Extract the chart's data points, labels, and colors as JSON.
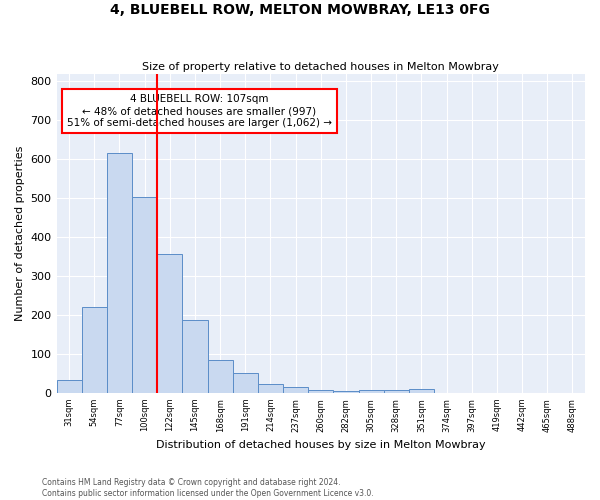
{
  "title": "4, BLUEBELL ROW, MELTON MOWBRAY, LE13 0FG",
  "subtitle": "Size of property relative to detached houses in Melton Mowbray",
  "xlabel": "Distribution of detached houses by size in Melton Mowbray",
  "ylabel": "Number of detached properties",
  "bin_labels": [
    "31sqm",
    "54sqm",
    "77sqm",
    "100sqm",
    "122sqm",
    "145sqm",
    "168sqm",
    "191sqm",
    "214sqm",
    "237sqm",
    "260sqm",
    "282sqm",
    "305sqm",
    "328sqm",
    "351sqm",
    "374sqm",
    "397sqm",
    "419sqm",
    "442sqm",
    "465sqm",
    "488sqm"
  ],
  "bar_heights": [
    32,
    220,
    615,
    503,
    357,
    187,
    85,
    52,
    22,
    14,
    8,
    5,
    8,
    8,
    10,
    0,
    0,
    0,
    0,
    0,
    0
  ],
  "bar_color": "#c9d9f0",
  "bar_edge_color": "#5b8dc8",
  "vline_color": "red",
  "annotation_text": "4 BLUEBELL ROW: 107sqm\n← 48% of detached houses are smaller (997)\n51% of semi-detached houses are larger (1,062) →",
  "annotation_box_color": "white",
  "annotation_box_edge": "red",
  "ylim": [
    0,
    820
  ],
  "yticks": [
    0,
    100,
    200,
    300,
    400,
    500,
    600,
    700,
    800
  ],
  "background_color": "#e8eef8",
  "footer_line1": "Contains HM Land Registry data © Crown copyright and database right 2024.",
  "footer_line2": "Contains public sector information licensed under the Open Government Licence v3.0."
}
